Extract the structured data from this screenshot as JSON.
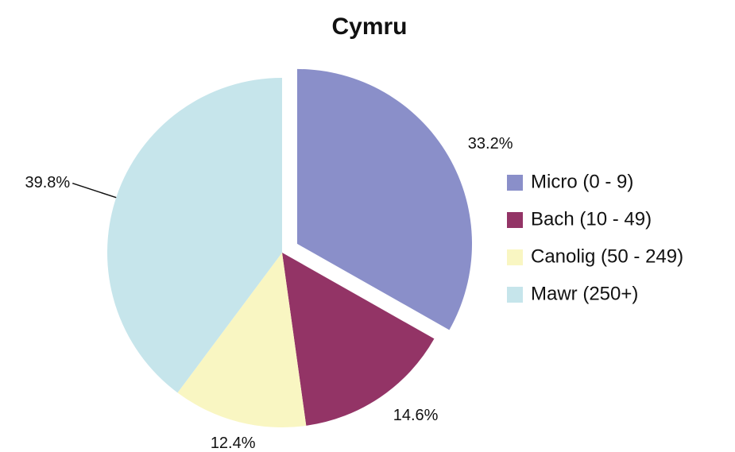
{
  "chart_data": {
    "type": "pie",
    "title": "Cymru",
    "categories": [
      "Micro (0 - 9)",
      "Bach (10 - 49)",
      "Canolig (50 - 249)",
      "Mawr (250+)"
    ],
    "values": [
      33.2,
      14.6,
      12.4,
      39.8
    ],
    "value_labels": [
      "33.2%",
      "14.6%",
      "12.4%",
      "39.8%"
    ],
    "colors": [
      "#8a8fc9",
      "#933466",
      "#f9f6c2",
      "#c6e5eb"
    ],
    "legend": "right"
  }
}
